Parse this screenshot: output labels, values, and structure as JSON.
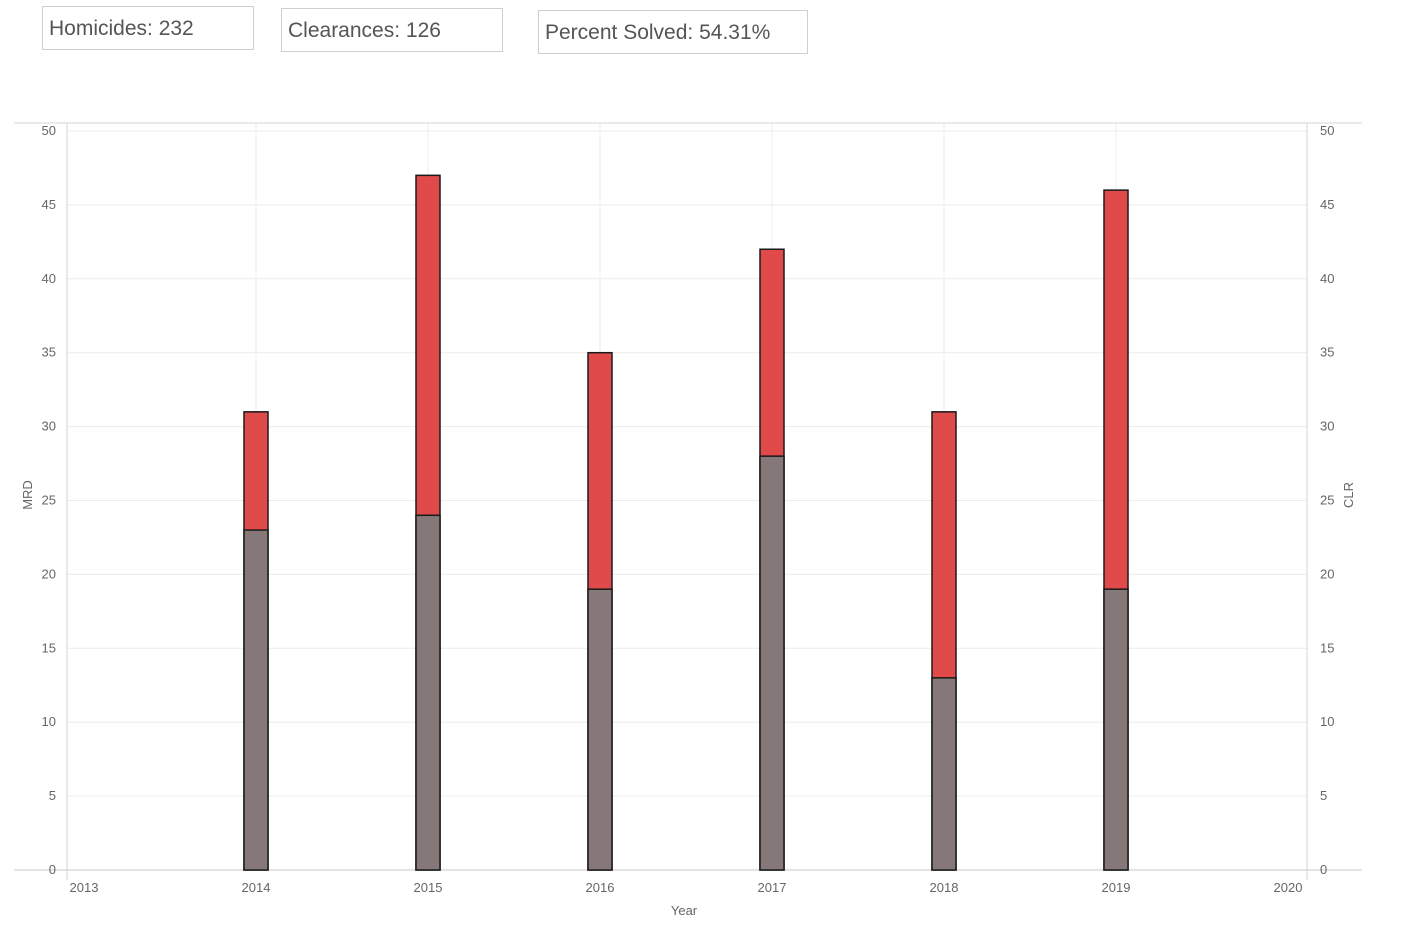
{
  "summary": {
    "homicides": "Homicides: 232",
    "clearances": "Clearances: 126",
    "percent_solved": "Percent Solved: 54.31%"
  },
  "chart_data": {
    "type": "bar",
    "stacked": false,
    "x_ticks": [
      "2013",
      "2014",
      "2015",
      "2016",
      "2017",
      "2018",
      "2019",
      "2020"
    ],
    "xlim": [
      2013,
      2020
    ],
    "categories": [
      "2014",
      "2015",
      "2016",
      "2017",
      "2018",
      "2019"
    ],
    "series": [
      {
        "name": "MRD",
        "color": "#e04a4a",
        "values": [
          31,
          47,
          35,
          42,
          31,
          46
        ]
      },
      {
        "name": "CLR",
        "color": "#867878",
        "values": [
          23,
          24,
          19,
          28,
          13,
          19
        ]
      }
    ],
    "xlabel": "Year",
    "ylabel_left": "MRD",
    "ylabel_right": "CLR",
    "ylim": [
      0,
      50
    ],
    "y_ticks": [
      0,
      5,
      10,
      15,
      20,
      25,
      30,
      35,
      40,
      45,
      50
    ],
    "grid": true
  }
}
